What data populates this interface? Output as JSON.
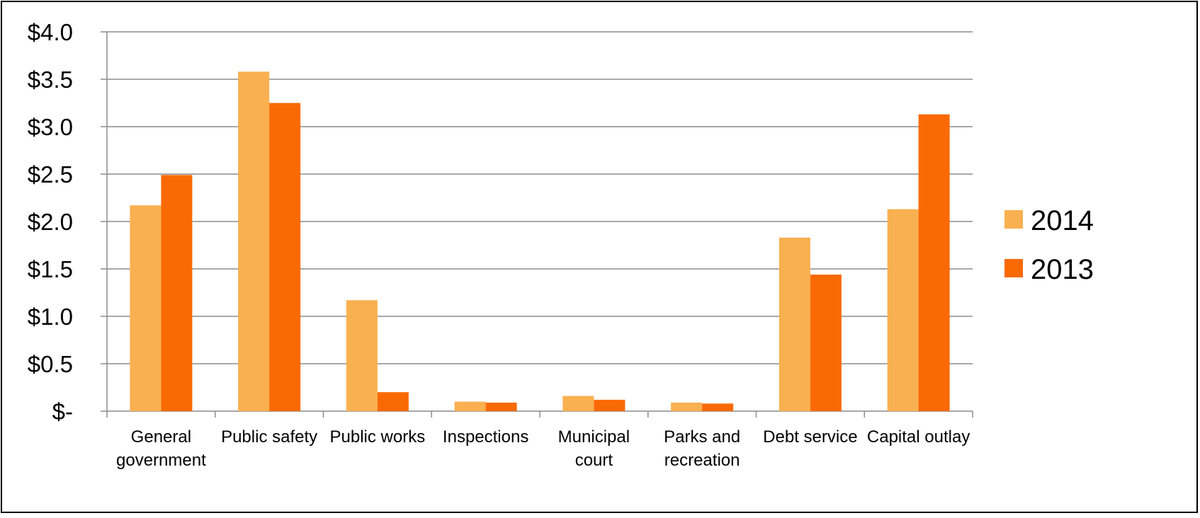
{
  "chart_data": {
    "type": "bar",
    "title": "",
    "xlabel": "",
    "ylabel": "",
    "categories": [
      [
        "General",
        "government"
      ],
      [
        "Public safety"
      ],
      [
        "Public works"
      ],
      [
        "Inspections"
      ],
      [
        "Municipal",
        "court"
      ],
      [
        "Parks and",
        "recreation"
      ],
      [
        "Debt service"
      ],
      [
        "Capital outlay"
      ]
    ],
    "series": [
      {
        "name": "2014",
        "color": "#F9B050",
        "values": [
          2.17,
          3.58,
          1.17,
          0.1,
          0.16,
          0.09,
          1.83,
          2.13
        ]
      },
      {
        "name": "2013",
        "color": "#F96A05",
        "values": [
          2.49,
          3.25,
          0.2,
          0.09,
          0.12,
          0.08,
          1.44,
          3.13
        ]
      }
    ],
    "ylim": [
      0,
      4
    ],
    "yticks": [
      0,
      0.5,
      1,
      1.5,
      2,
      2.5,
      3,
      3.5,
      4
    ],
    "ytick_labels": [
      "$-",
      "$0.5",
      "$1.0",
      "$1.5",
      "$2.0",
      "$2.5",
      "$3.0",
      "$3.5",
      "$4.0"
    ],
    "grid": true,
    "gridline_color": "#8c8c8c",
    "legend": "right"
  }
}
